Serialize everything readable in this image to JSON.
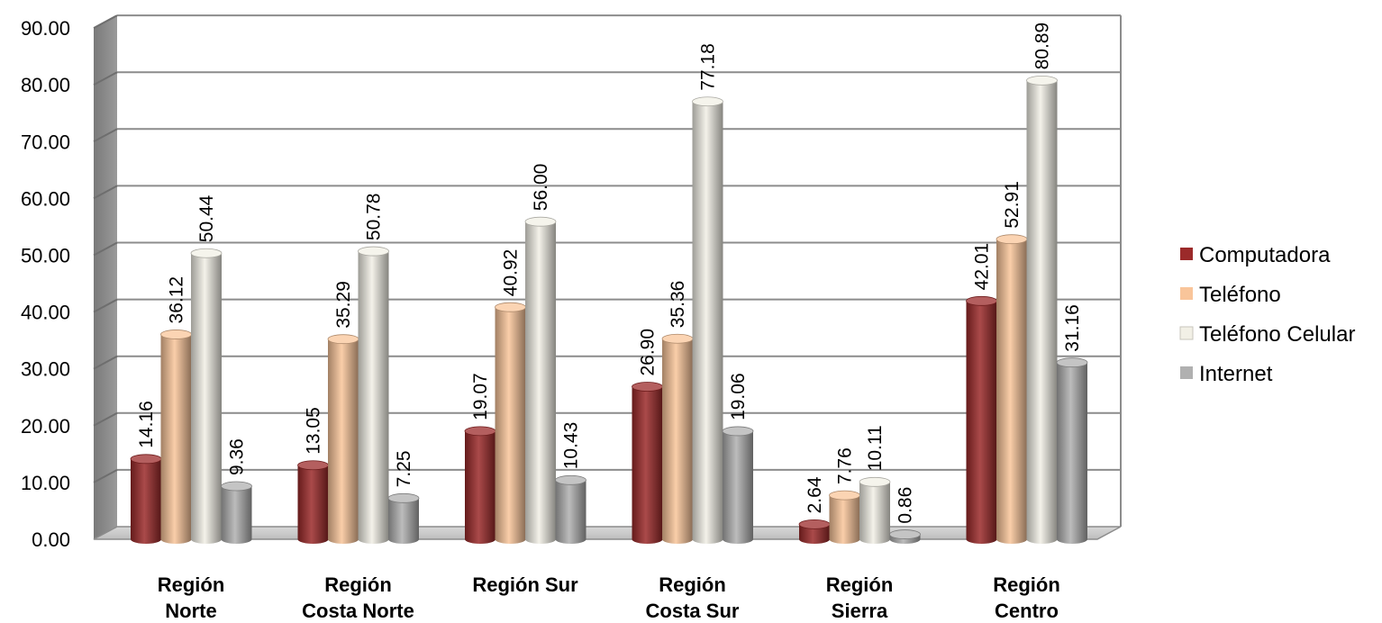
{
  "chart_data": {
    "type": "bar",
    "categories": [
      [
        "Región",
        "Norte"
      ],
      [
        "Región",
        "Costa Norte"
      ],
      [
        "Región Sur"
      ],
      [
        "Región",
        "Costa Sur"
      ],
      [
        "Región",
        "Sierra"
      ],
      [
        "Región",
        "Centro"
      ]
    ],
    "series": [
      {
        "name": "Computadora",
        "color": "#9b2a2a",
        "values": [
          14.16,
          13.05,
          19.07,
          26.9,
          2.64,
          42.01
        ],
        "labels": [
          "14.16",
          "13.05",
          "19.07",
          "26.90",
          "2.64",
          "42.01"
        ]
      },
      {
        "name": "Teléfono",
        "color": "#f9c59a",
        "values": [
          36.12,
          35.29,
          40.92,
          35.36,
          7.76,
          52.91
        ],
        "labels": [
          "36.12",
          "35.29",
          "40.92",
          "35.36",
          "7.76",
          "52.91"
        ]
      },
      {
        "name": "Teléfono Celular",
        "color": "#f2f0e6",
        "values": [
          50.44,
          50.78,
          56.0,
          77.18,
          10.11,
          80.89
        ],
        "labels": [
          "50.44",
          "50.78",
          "56.00",
          "77.18",
          "10.11",
          "80.89"
        ]
      },
      {
        "name": "Internet",
        "color": "#b0b0b0",
        "values": [
          9.36,
          7.25,
          10.43,
          19.06,
          0.86,
          31.16
        ],
        "labels": [
          "9.36",
          "7.25",
          "10.43",
          "19.06",
          "0.86",
          "31.16"
        ]
      }
    ],
    "yticks": [
      "0.00",
      "10.00",
      "20.00",
      "30.00",
      "40.00",
      "50.00",
      "60.00",
      "70.00",
      "80.00",
      "90.00"
    ],
    "ylim": [
      0,
      90
    ],
    "grid": true,
    "legend_position": "right",
    "style": "3d-cylinder"
  }
}
